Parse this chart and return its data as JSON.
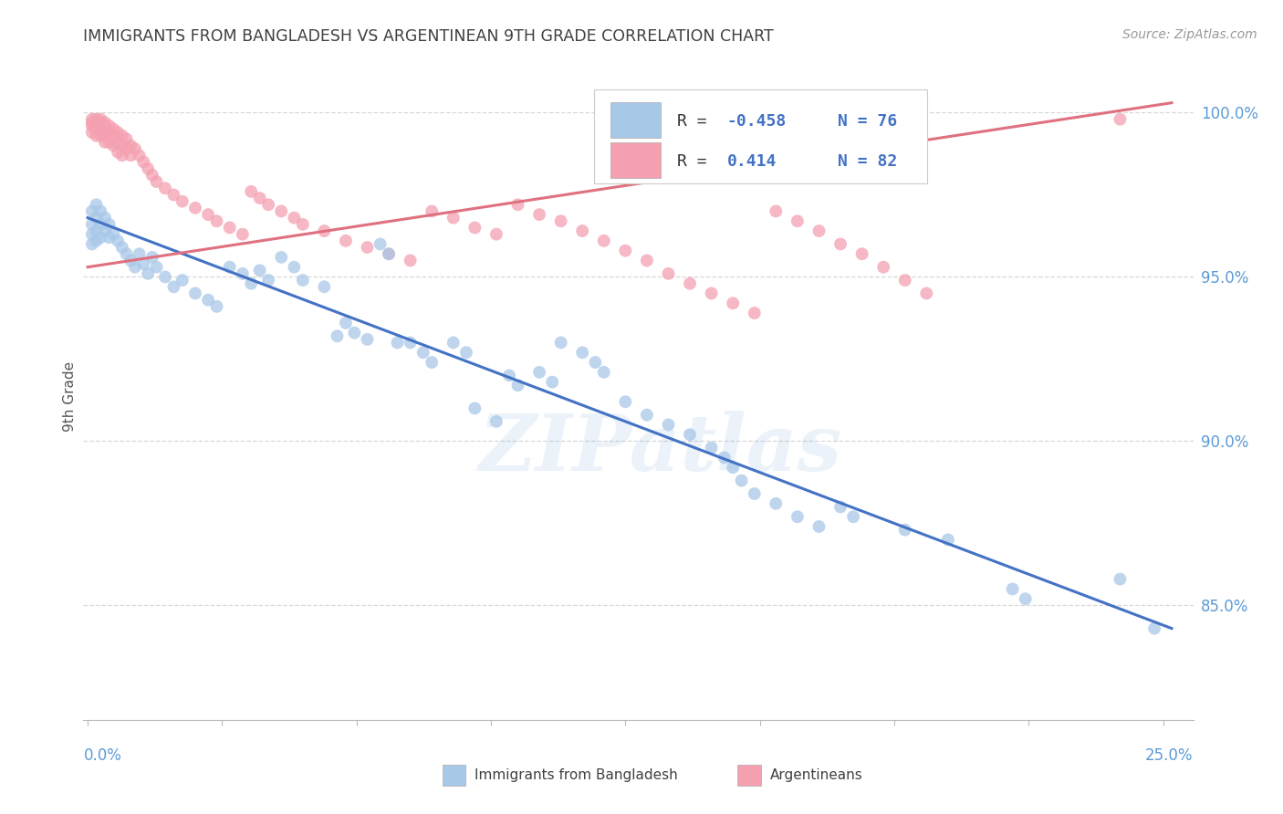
{
  "title": "IMMIGRANTS FROM BANGLADESH VS ARGENTINEAN 9TH GRADE CORRELATION CHART",
  "source": "Source: ZipAtlas.com",
  "ylabel": "9th Grade",
  "ylim": [
    0.815,
    1.012
  ],
  "xlim": [
    -0.001,
    0.257
  ],
  "ytick_labels": [
    "85.0%",
    "90.0%",
    "95.0%",
    "100.0%"
  ],
  "ytick_values": [
    0.85,
    0.9,
    0.95,
    1.0
  ],
  "xtick_values": [
    0.0,
    0.03125,
    0.0625,
    0.09375,
    0.125,
    0.15625,
    0.1875,
    0.21875,
    0.25
  ],
  "blue_color": "#a8c8e8",
  "pink_color": "#f4a0b0",
  "blue_line_color": "#4472c4",
  "pink_line_color": "#e07080",
  "blue_trend_x": [
    0.0,
    0.252
  ],
  "blue_trend_y": [
    0.968,
    0.843
  ],
  "pink_trend_x": [
    0.0,
    0.252
  ],
  "pink_trend_y": [
    0.953,
    1.003
  ],
  "blue_scatter": [
    [
      0.001,
      0.97
    ],
    [
      0.001,
      0.966
    ],
    [
      0.001,
      0.963
    ],
    [
      0.001,
      0.96
    ],
    [
      0.002,
      0.972
    ],
    [
      0.002,
      0.968
    ],
    [
      0.002,
      0.964
    ],
    [
      0.002,
      0.961
    ],
    [
      0.003,
      0.97
    ],
    [
      0.003,
      0.966
    ],
    [
      0.003,
      0.962
    ],
    [
      0.004,
      0.968
    ],
    [
      0.004,
      0.964
    ],
    [
      0.005,
      0.966
    ],
    [
      0.005,
      0.962
    ],
    [
      0.006,
      0.963
    ],
    [
      0.007,
      0.961
    ],
    [
      0.008,
      0.959
    ],
    [
      0.009,
      0.957
    ],
    [
      0.01,
      0.955
    ],
    [
      0.011,
      0.953
    ],
    [
      0.012,
      0.957
    ],
    [
      0.013,
      0.954
    ],
    [
      0.014,
      0.951
    ],
    [
      0.015,
      0.956
    ],
    [
      0.016,
      0.953
    ],
    [
      0.018,
      0.95
    ],
    [
      0.02,
      0.947
    ],
    [
      0.022,
      0.949
    ],
    [
      0.025,
      0.945
    ],
    [
      0.028,
      0.943
    ],
    [
      0.03,
      0.941
    ],
    [
      0.033,
      0.953
    ],
    [
      0.036,
      0.951
    ],
    [
      0.038,
      0.948
    ],
    [
      0.04,
      0.952
    ],
    [
      0.042,
      0.949
    ],
    [
      0.045,
      0.956
    ],
    [
      0.048,
      0.953
    ],
    [
      0.05,
      0.949
    ],
    [
      0.055,
      0.947
    ],
    [
      0.058,
      0.932
    ],
    [
      0.06,
      0.936
    ],
    [
      0.062,
      0.933
    ],
    [
      0.065,
      0.931
    ],
    [
      0.068,
      0.96
    ],
    [
      0.07,
      0.957
    ],
    [
      0.072,
      0.93
    ],
    [
      0.075,
      0.93
    ],
    [
      0.078,
      0.927
    ],
    [
      0.08,
      0.924
    ],
    [
      0.085,
      0.93
    ],
    [
      0.088,
      0.927
    ],
    [
      0.09,
      0.91
    ],
    [
      0.095,
      0.906
    ],
    [
      0.098,
      0.92
    ],
    [
      0.1,
      0.917
    ],
    [
      0.105,
      0.921
    ],
    [
      0.108,
      0.918
    ],
    [
      0.11,
      0.93
    ],
    [
      0.115,
      0.927
    ],
    [
      0.118,
      0.924
    ],
    [
      0.12,
      0.921
    ],
    [
      0.125,
      0.912
    ],
    [
      0.13,
      0.908
    ],
    [
      0.135,
      0.905
    ],
    [
      0.14,
      0.902
    ],
    [
      0.145,
      0.898
    ],
    [
      0.148,
      0.895
    ],
    [
      0.15,
      0.892
    ],
    [
      0.152,
      0.888
    ],
    [
      0.155,
      0.884
    ],
    [
      0.16,
      0.881
    ],
    [
      0.165,
      0.877
    ],
    [
      0.17,
      0.874
    ],
    [
      0.175,
      0.88
    ],
    [
      0.178,
      0.877
    ],
    [
      0.19,
      0.873
    ],
    [
      0.2,
      0.87
    ],
    [
      0.215,
      0.855
    ],
    [
      0.218,
      0.852
    ],
    [
      0.24,
      0.858
    ],
    [
      0.248,
      0.843
    ]
  ],
  "pink_scatter": [
    [
      0.001,
      0.998
    ],
    [
      0.001,
      0.997
    ],
    [
      0.001,
      0.996
    ],
    [
      0.001,
      0.994
    ],
    [
      0.002,
      0.998
    ],
    [
      0.002,
      0.997
    ],
    [
      0.002,
      0.995
    ],
    [
      0.002,
      0.993
    ],
    [
      0.003,
      0.998
    ],
    [
      0.003,
      0.997
    ],
    [
      0.003,
      0.995
    ],
    [
      0.003,
      0.993
    ],
    [
      0.004,
      0.997
    ],
    [
      0.004,
      0.995
    ],
    [
      0.004,
      0.993
    ],
    [
      0.004,
      0.991
    ],
    [
      0.005,
      0.996
    ],
    [
      0.005,
      0.994
    ],
    [
      0.005,
      0.991
    ],
    [
      0.006,
      0.995
    ],
    [
      0.006,
      0.993
    ],
    [
      0.006,
      0.99
    ],
    [
      0.007,
      0.994
    ],
    [
      0.007,
      0.991
    ],
    [
      0.007,
      0.988
    ],
    [
      0.008,
      0.993
    ],
    [
      0.008,
      0.99
    ],
    [
      0.008,
      0.987
    ],
    [
      0.009,
      0.992
    ],
    [
      0.009,
      0.989
    ],
    [
      0.01,
      0.99
    ],
    [
      0.01,
      0.987
    ],
    [
      0.011,
      0.989
    ],
    [
      0.012,
      0.987
    ],
    [
      0.013,
      0.985
    ],
    [
      0.014,
      0.983
    ],
    [
      0.015,
      0.981
    ],
    [
      0.016,
      0.979
    ],
    [
      0.018,
      0.977
    ],
    [
      0.02,
      0.975
    ],
    [
      0.022,
      0.973
    ],
    [
      0.025,
      0.971
    ],
    [
      0.028,
      0.969
    ],
    [
      0.03,
      0.967
    ],
    [
      0.033,
      0.965
    ],
    [
      0.036,
      0.963
    ],
    [
      0.038,
      0.976
    ],
    [
      0.04,
      0.974
    ],
    [
      0.042,
      0.972
    ],
    [
      0.045,
      0.97
    ],
    [
      0.048,
      0.968
    ],
    [
      0.05,
      0.966
    ],
    [
      0.055,
      0.964
    ],
    [
      0.06,
      0.961
    ],
    [
      0.065,
      0.959
    ],
    [
      0.07,
      0.957
    ],
    [
      0.075,
      0.955
    ],
    [
      0.08,
      0.97
    ],
    [
      0.085,
      0.968
    ],
    [
      0.09,
      0.965
    ],
    [
      0.095,
      0.963
    ],
    [
      0.1,
      0.972
    ],
    [
      0.105,
      0.969
    ],
    [
      0.11,
      0.967
    ],
    [
      0.115,
      0.964
    ],
    [
      0.12,
      0.961
    ],
    [
      0.125,
      0.958
    ],
    [
      0.13,
      0.955
    ],
    [
      0.135,
      0.951
    ],
    [
      0.14,
      0.948
    ],
    [
      0.145,
      0.945
    ],
    [
      0.15,
      0.942
    ],
    [
      0.155,
      0.939
    ],
    [
      0.16,
      0.97
    ],
    [
      0.165,
      0.967
    ],
    [
      0.17,
      0.964
    ],
    [
      0.175,
      0.96
    ],
    [
      0.18,
      0.957
    ],
    [
      0.185,
      0.953
    ],
    [
      0.19,
      0.949
    ],
    [
      0.195,
      0.945
    ],
    [
      0.24,
      0.998
    ]
  ],
  "background_color": "#ffffff",
  "grid_color": "#d8d8d8",
  "axis_color": "#5b9bd5",
  "title_color": "#404040",
  "source_color": "#999999",
  "watermark": "ZIPatlas",
  "legend_text_color": "#404040",
  "legend_border_color": "#cccccc"
}
